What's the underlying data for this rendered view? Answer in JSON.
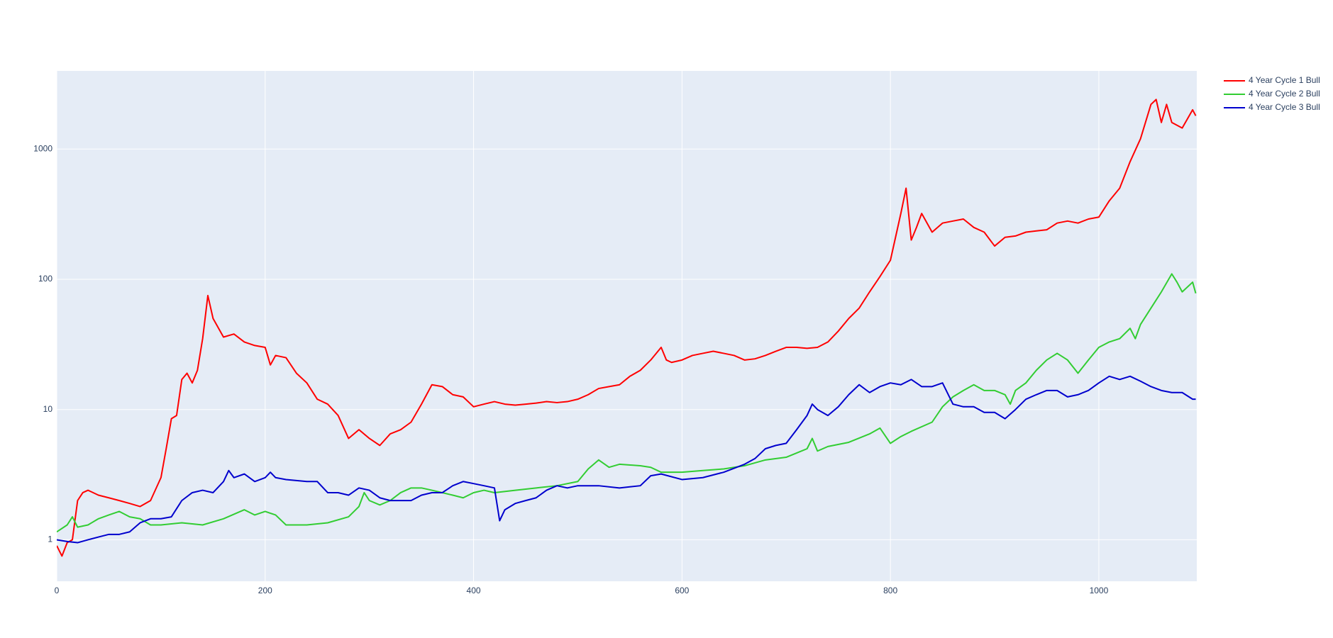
{
  "chart_data": {
    "type": "line",
    "log_y": true,
    "grid": true,
    "legend_position": "right",
    "xlim": [
      0,
      1094
    ],
    "ylim": [
      0.48,
      3980
    ],
    "xticks": [
      0,
      200,
      400,
      600,
      800,
      1000
    ],
    "yticks": [
      1,
      10,
      100,
      1000
    ],
    "series": [
      {
        "name": "4 Year Cycle 1 Bull",
        "color": "#ff0000",
        "x": [
          0,
          5,
          10,
          15,
          20,
          25,
          30,
          40,
          50,
          60,
          70,
          80,
          90,
          100,
          105,
          110,
          115,
          120,
          125,
          130,
          135,
          140,
          145,
          150,
          160,
          170,
          180,
          190,
          200,
          205,
          210,
          220,
          230,
          240,
          250,
          260,
          270,
          280,
          290,
          300,
          310,
          320,
          330,
          340,
          350,
          360,
          370,
          380,
          390,
          400,
          410,
          420,
          430,
          440,
          450,
          460,
          470,
          480,
          490,
          500,
          510,
          520,
          530,
          540,
          550,
          560,
          570,
          580,
          585,
          590,
          600,
          610,
          620,
          630,
          640,
          650,
          660,
          670,
          680,
          690,
          700,
          710,
          720,
          730,
          740,
          750,
          760,
          770,
          780,
          790,
          800,
          810,
          815,
          820,
          825,
          830,
          840,
          850,
          860,
          870,
          880,
          890,
          900,
          910,
          920,
          930,
          940,
          950,
          960,
          970,
          980,
          990,
          1000,
          1010,
          1020,
          1030,
          1040,
          1050,
          1055,
          1060,
          1065,
          1070,
          1080,
          1090,
          1093
        ],
        "values": [
          0.9,
          0.75,
          0.95,
          1.0,
          2.0,
          2.3,
          2.4,
          2.2,
          2.1,
          2.0,
          1.9,
          1.8,
          2.0,
          3.0,
          5,
          8.5,
          9,
          17,
          19,
          16,
          20,
          35,
          75,
          50,
          36,
          38,
          33,
          31,
          30,
          22,
          26,
          25,
          19,
          16,
          12,
          11,
          9,
          6,
          7,
          6,
          5.3,
          6.5,
          7,
          8,
          11,
          15.5,
          15,
          13,
          12.5,
          10.5,
          11,
          11.5,
          11,
          10.8,
          11,
          11.2,
          11.5,
          11.3,
          11.5,
          12,
          13,
          14.5,
          15,
          15.5,
          18,
          20,
          24,
          30,
          24,
          23,
          24,
          26,
          27,
          28,
          27,
          26,
          24,
          24.5,
          26,
          28,
          30,
          30,
          29.5,
          30,
          33,
          40,
          50,
          60,
          80,
          105,
          140,
          320,
          500,
          200,
          250,
          320,
          230,
          270,
          280,
          290,
          250,
          230,
          180,
          210,
          215,
          230,
          235,
          240,
          270,
          280,
          270,
          290,
          300,
          400,
          500,
          800,
          1200,
          2200,
          2400,
          1600,
          2200,
          1600,
          1450,
          2000,
          1800
        ]
      },
      {
        "name": "4 Year Cycle 2 Bull",
        "color": "#32cd32",
        "x": [
          0,
          10,
          15,
          20,
          30,
          40,
          50,
          60,
          70,
          80,
          90,
          100,
          120,
          140,
          160,
          180,
          190,
          200,
          210,
          220,
          240,
          260,
          280,
          290,
          295,
          300,
          310,
          320,
          330,
          340,
          350,
          360,
          370,
          380,
          390,
          400,
          410,
          420,
          440,
          460,
          480,
          500,
          510,
          520,
          530,
          540,
          560,
          570,
          580,
          600,
          620,
          640,
          660,
          680,
          700,
          720,
          725,
          730,
          740,
          760,
          780,
          790,
          800,
          810,
          820,
          840,
          850,
          860,
          870,
          880,
          890,
          900,
          910,
          915,
          920,
          930,
          940,
          950,
          960,
          970,
          980,
          990,
          1000,
          1010,
          1020,
          1030,
          1035,
          1040,
          1050,
          1060,
          1070,
          1075,
          1080,
          1090,
          1093
        ],
        "values": [
          1.15,
          1.3,
          1.5,
          1.25,
          1.3,
          1.45,
          1.55,
          1.65,
          1.5,
          1.45,
          1.3,
          1.3,
          1.35,
          1.3,
          1.45,
          1.7,
          1.55,
          1.65,
          1.55,
          1.3,
          1.3,
          1.35,
          1.5,
          1.8,
          2.3,
          2.0,
          1.85,
          2.0,
          2.3,
          2.5,
          2.5,
          2.4,
          2.3,
          2.2,
          2.1,
          2.3,
          2.4,
          2.3,
          2.4,
          2.5,
          2.6,
          2.8,
          3.5,
          4.1,
          3.6,
          3.8,
          3.7,
          3.6,
          3.3,
          3.3,
          3.4,
          3.5,
          3.7,
          4.1,
          4.3,
          5.0,
          6.0,
          4.8,
          5.2,
          5.6,
          6.5,
          7.2,
          5.5,
          6.2,
          6.8,
          8,
          10.5,
          12.5,
          14,
          15.5,
          14,
          14,
          13,
          11,
          14,
          16,
          20,
          24,
          27,
          24,
          19,
          24,
          30,
          33,
          35,
          42,
          35,
          45,
          60,
          80,
          110,
          95,
          80,
          95,
          78
        ]
      },
      {
        "name": "4 Year Cycle 3 Bull",
        "color": "#0000cd",
        "x": [
          0,
          10,
          20,
          30,
          40,
          50,
          60,
          70,
          80,
          90,
          100,
          110,
          120,
          130,
          140,
          150,
          160,
          165,
          170,
          180,
          190,
          200,
          205,
          210,
          220,
          240,
          250,
          260,
          270,
          280,
          290,
          300,
          310,
          320,
          330,
          340,
          350,
          360,
          370,
          380,
          390,
          400,
          410,
          420,
          425,
          430,
          440,
          450,
          460,
          470,
          480,
          490,
          500,
          520,
          540,
          560,
          570,
          580,
          600,
          620,
          640,
          660,
          670,
          680,
          690,
          700,
          710,
          720,
          725,
          730,
          740,
          750,
          760,
          770,
          780,
          790,
          800,
          810,
          820,
          830,
          840,
          850,
          860,
          870,
          880,
          890,
          900,
          910,
          920,
          930,
          940,
          950,
          960,
          970,
          980,
          990,
          1000,
          1010,
          1020,
          1030,
          1040,
          1050,
          1060,
          1070,
          1080,
          1090,
          1093
        ],
        "values": [
          1.0,
          0.97,
          0.95,
          1.0,
          1.05,
          1.1,
          1.1,
          1.15,
          1.35,
          1.45,
          1.45,
          1.5,
          2.0,
          2.3,
          2.4,
          2.3,
          2.8,
          3.4,
          3.0,
          3.2,
          2.8,
          3.0,
          3.3,
          3.0,
          2.9,
          2.8,
          2.8,
          2.3,
          2.3,
          2.2,
          2.5,
          2.4,
          2.1,
          2.0,
          2.0,
          2.0,
          2.2,
          2.3,
          2.3,
          2.6,
          2.8,
          2.7,
          2.6,
          2.5,
          1.4,
          1.7,
          1.9,
          2.0,
          2.1,
          2.4,
          2.6,
          2.5,
          2.6,
          2.6,
          2.5,
          2.6,
          3.1,
          3.2,
          2.9,
          3.0,
          3.3,
          3.8,
          4.2,
          5.0,
          5.3,
          5.5,
          7,
          9,
          11,
          10,
          9,
          10.5,
          13,
          15.5,
          13.5,
          15,
          16,
          15.5,
          17,
          15,
          15,
          16,
          11,
          10.5,
          10.5,
          9.5,
          9.5,
          8.5,
          10,
          12,
          13,
          14,
          14,
          12.5,
          13,
          14,
          16,
          18,
          17,
          18,
          16.5,
          15,
          14,
          13.5,
          13.5,
          12,
          12
        ]
      }
    ]
  }
}
